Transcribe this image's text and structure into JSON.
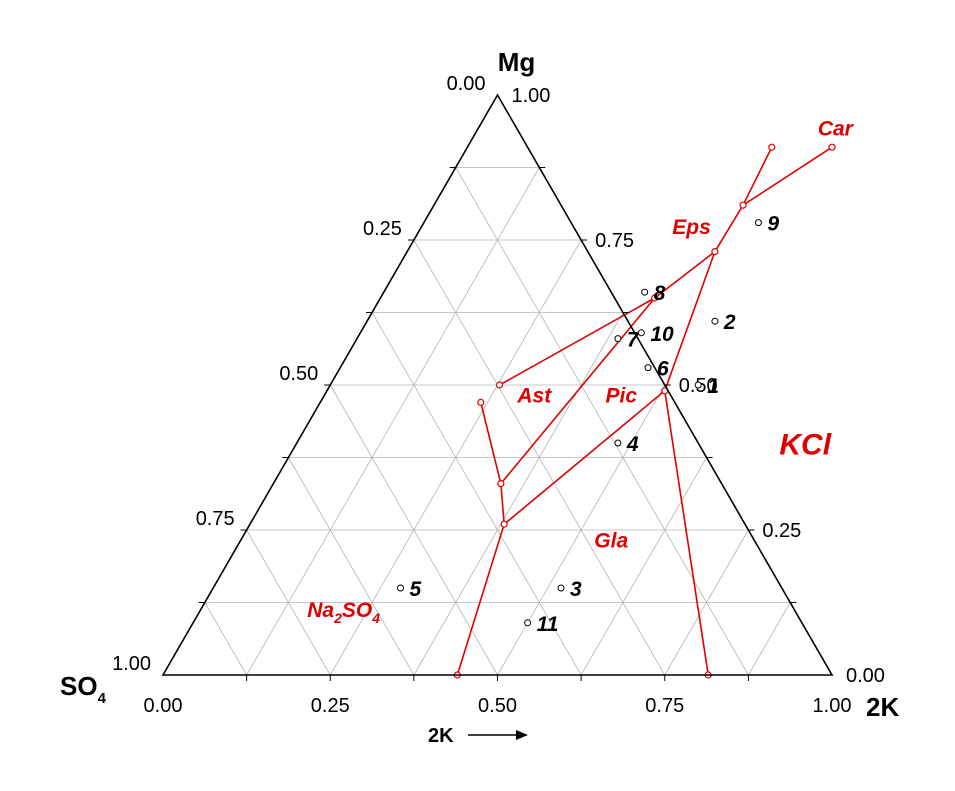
{
  "chart_data": {
    "type": "ternary",
    "vertices": {
      "top": {
        "label": "Mg"
      },
      "left": {
        "label": "SO",
        "sub": "4"
      },
      "right": {
        "label": "2K"
      }
    },
    "bottom_axis": {
      "label": "2K",
      "ticks": [
        "0.00",
        "0.25",
        "0.50",
        "0.75",
        "1.00"
      ]
    },
    "left_axis_ticks": [
      "0.00",
      "0.25",
      "0.50",
      "0.75",
      "1.00"
    ],
    "right_axis_ticks": [
      "1.00",
      "0.75",
      "0.50",
      "0.25",
      "0.00"
    ],
    "grid": true,
    "colors": {
      "frame": "#000000",
      "grid": "#b4b4b4",
      "boundary": "#e00000",
      "region_label": "#e00000",
      "points": "#000000"
    },
    "data_points": [
      {
        "label": "1",
        "k": 0.55,
        "mg": 0.5
      },
      {
        "label": "2",
        "k": 0.52,
        "mg": 0.61
      },
      {
        "label": "3",
        "k": 0.52,
        "mg": 0.15
      },
      {
        "label": "4",
        "k": 0.48,
        "mg": 0.4
      },
      {
        "label": "5",
        "k": 0.28,
        "mg": 0.15
      },
      {
        "label": "6",
        "k": 0.46,
        "mg": 0.53
      },
      {
        "label": "7",
        "k": 0.39,
        "mg": 0.58
      },
      {
        "label": "8",
        "k": 0.39,
        "mg": 0.66
      },
      {
        "label": "9",
        "k": 0.5,
        "mg": 0.78
      },
      {
        "label": "10",
        "k": 0.42,
        "mg": 0.59
      },
      {
        "label": "11",
        "k": 0.5,
        "mg": 0.09
      }
    ],
    "invariant_points": [
      {
        "k": 0.455,
        "mg": 0.91
      },
      {
        "k": 0.545,
        "mg": 0.91
      },
      {
        "k": 0.462,
        "mg": 0.81
      },
      {
        "k": 0.46,
        "mg": 0.73
      },
      {
        "k": 0.41,
        "mg": 0.65
      },
      {
        "k": 0.253,
        "mg": 0.5
      },
      {
        "k": 0.24,
        "mg": 0.47
      },
      {
        "k": 0.505,
        "mg": 0.49
      },
      {
        "k": 0.34,
        "mg": 0.33
      },
      {
        "k": 0.38,
        "mg": 0.26
      },
      {
        "k": 0.44,
        "mg": 0.0
      },
      {
        "k": 0.815,
        "mg": 0.0
      }
    ],
    "boundaries": [
      [
        {
          "k": 0.455,
          "mg": 0.91
        },
        {
          "k": 0.462,
          "mg": 0.81
        }
      ],
      [
        {
          "k": 0.545,
          "mg": 0.91
        },
        {
          "k": 0.462,
          "mg": 0.81
        }
      ],
      [
        {
          "k": 0.462,
          "mg": 0.81
        },
        {
          "k": 0.46,
          "mg": 0.73
        }
      ],
      [
        {
          "k": 0.46,
          "mg": 0.73
        },
        {
          "k": 0.41,
          "mg": 0.65
        }
      ],
      [
        {
          "k": 0.41,
          "mg": 0.65
        },
        {
          "k": 0.253,
          "mg": 0.5
        }
      ],
      [
        {
          "k": 0.46,
          "mg": 0.73
        },
        {
          "k": 0.505,
          "mg": 0.49
        }
      ],
      [
        {
          "k": 0.41,
          "mg": 0.65
        },
        {
          "k": 0.34,
          "mg": 0.33
        }
      ],
      [
        {
          "k": 0.24,
          "mg": 0.47
        },
        {
          "k": 0.34,
          "mg": 0.33
        }
      ],
      [
        {
          "k": 0.34,
          "mg": 0.33
        },
        {
          "k": 0.38,
          "mg": 0.26
        }
      ],
      [
        {
          "k": 0.505,
          "mg": 0.49
        },
        {
          "k": 0.38,
          "mg": 0.26
        }
      ],
      [
        {
          "k": 0.38,
          "mg": 0.26
        },
        {
          "k": 0.44,
          "mg": 0.0
        }
      ],
      [
        {
          "k": 0.505,
          "mg": 0.49
        },
        {
          "k": 0.815,
          "mg": 0.0
        }
      ]
    ],
    "regions": [
      {
        "label": "Car",
        "k": 0.54,
        "mg": 0.93,
        "big": false
      },
      {
        "label": "Eps",
        "k": 0.41,
        "mg": 0.76,
        "big": false
      },
      {
        "label": "Ast",
        "k": 0.32,
        "mg": 0.47,
        "big": false
      },
      {
        "label": "Pic",
        "k": 0.45,
        "mg": 0.47,
        "big": false
      },
      {
        "label": "KCl",
        "k": 0.77,
        "mg": 0.38,
        "big": true
      },
      {
        "label": "Gla",
        "k": 0.56,
        "mg": 0.22,
        "big": false
      },
      {
        "label": "Na",
        "label_sub1": "2",
        "label_mid": "SO",
        "label_sub2": "4",
        "k": 0.22,
        "mg": 0.1,
        "big": false
      }
    ]
  }
}
